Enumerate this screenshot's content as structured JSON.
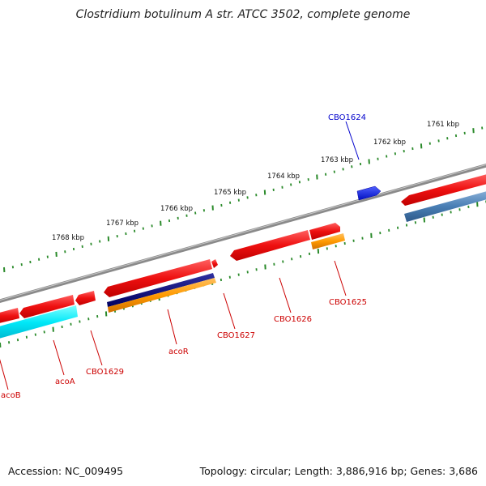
{
  "title": "Clostridium botulinum A str. ATCC 3502, complete genome",
  "footer": {
    "accession": "Accession: NC_009495",
    "topology": "Topology: circular; Length: 3,886,916 bp; Genes: 3,686"
  },
  "colors": {
    "backbone": "#8a8a8a",
    "tick": "#2a8a2a",
    "gene_red": "#ee1c1c",
    "label_red": "#cc0000",
    "label_blue": "#0000cc",
    "cyan": "#00e0f0",
    "navy": "#000080",
    "orange": "#ff9900",
    "steel": "#4a7fb5",
    "blue": "#0018f0"
  },
  "scale_labels": [
    "1761 kbp",
    "1762 kbp",
    "1763 kbp",
    "1764 kbp",
    "1765 kbp",
    "1766 kbp",
    "1767 kbp",
    "1768 kbp"
  ],
  "gene_labels": [
    {
      "name": "CBO1624",
      "color": "blue"
    },
    {
      "name": "CBO1625",
      "color": "red"
    },
    {
      "name": "CBO1626",
      "color": "red"
    },
    {
      "name": "CBO1627",
      "color": "red"
    },
    {
      "name": "acoR",
      "color": "red"
    },
    {
      "name": "CBO1629",
      "color": "red"
    },
    {
      "name": "acoA",
      "color": "red"
    },
    {
      "name": "acoB",
      "color": "red"
    }
  ]
}
